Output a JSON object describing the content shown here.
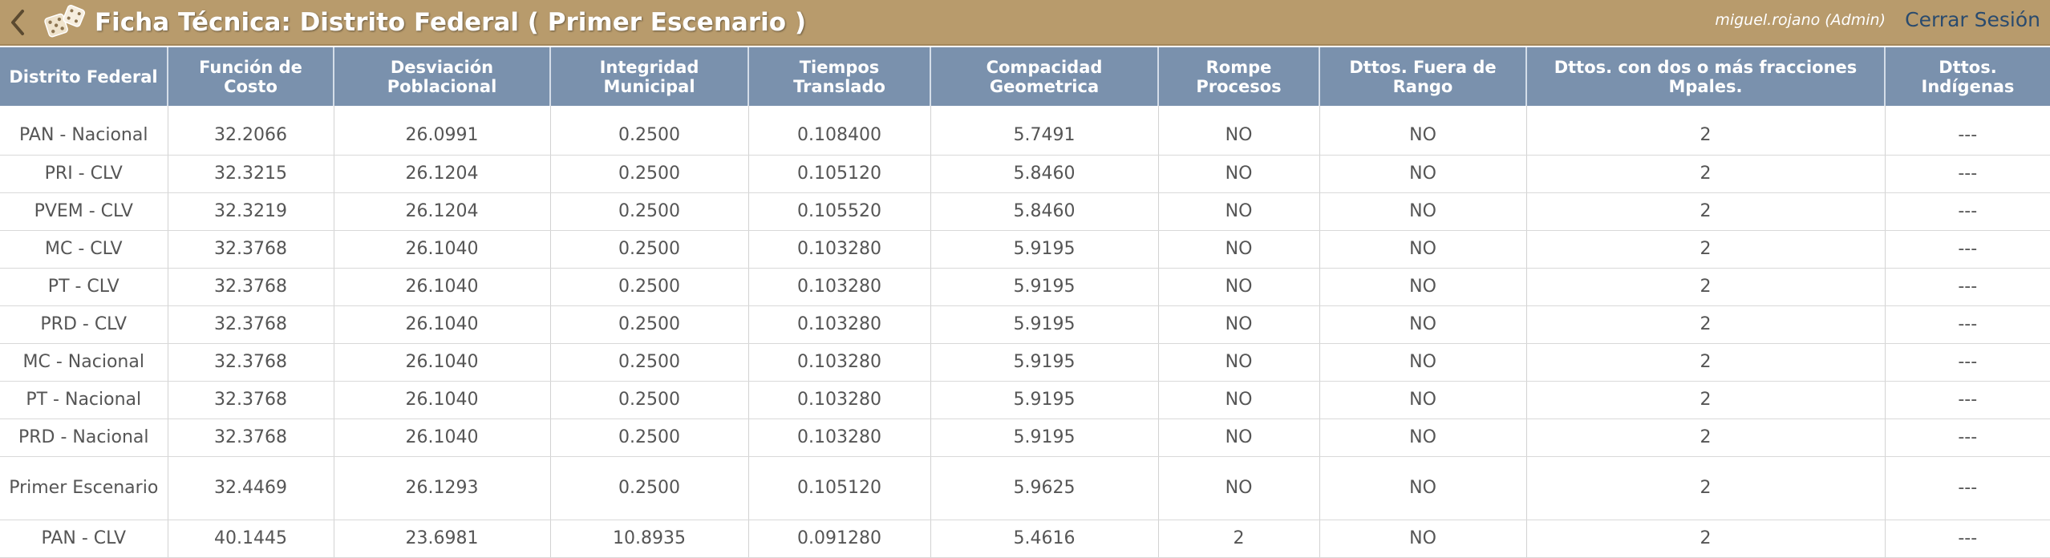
{
  "header": {
    "title": "Ficha Técnica: Distrito Federal ( Primer Escenario )",
    "user": "miguel.rojano (Admin)",
    "logout_label": "Cerrar Sesión"
  },
  "table": {
    "columns": [
      "Distrito Federal",
      "Función de Costo",
      "Desviación Poblacional",
      "Integridad Municipal",
      "Tiempos Translado",
      "Compacidad Geometrica",
      "Rompe Procesos",
      "Dttos. Fuera de Rango",
      "Dttos. con dos o más fracciones Mpales.",
      "Dttos. Indígenas"
    ],
    "rows": [
      [
        "PAN - Nacional",
        "32.2066",
        "26.0991",
        "0.2500",
        "0.108400",
        "5.7491",
        "NO",
        "NO",
        "2",
        "---"
      ],
      [
        "PRI - CLV",
        "32.3215",
        "26.1204",
        "0.2500",
        "0.105120",
        "5.8460",
        "NO",
        "NO",
        "2",
        "---"
      ],
      [
        "PVEM - CLV",
        "32.3219",
        "26.1204",
        "0.2500",
        "0.105520",
        "5.8460",
        "NO",
        "NO",
        "2",
        "---"
      ],
      [
        "MC - CLV",
        "32.3768",
        "26.1040",
        "0.2500",
        "0.103280",
        "5.9195",
        "NO",
        "NO",
        "2",
        "---"
      ],
      [
        "PT - CLV",
        "32.3768",
        "26.1040",
        "0.2500",
        "0.103280",
        "5.9195",
        "NO",
        "NO",
        "2",
        "---"
      ],
      [
        "PRD - CLV",
        "32.3768",
        "26.1040",
        "0.2500",
        "0.103280",
        "5.9195",
        "NO",
        "NO",
        "2",
        "---"
      ],
      [
        "MC - Nacional",
        "32.3768",
        "26.1040",
        "0.2500",
        "0.103280",
        "5.9195",
        "NO",
        "NO",
        "2",
        "---"
      ],
      [
        "PT - Nacional",
        "32.3768",
        "26.1040",
        "0.2500",
        "0.103280",
        "5.9195",
        "NO",
        "NO",
        "2",
        "---"
      ],
      [
        "PRD - Nacional",
        "32.3768",
        "26.1040",
        "0.2500",
        "0.103280",
        "5.9195",
        "NO",
        "NO",
        "2",
        "---"
      ],
      [
        "Primer Escenario",
        "32.4469",
        "26.1293",
        "0.2500",
        "0.105120",
        "5.9625",
        "NO",
        "NO",
        "2",
        "---"
      ],
      [
        "PAN - CLV",
        "40.1445",
        "23.6981",
        "10.8935",
        "0.091280",
        "5.4616",
        "2",
        "NO",
        "2",
        "---"
      ]
    ]
  },
  "icons": {
    "back": "chevron-left-icon",
    "logo": "dice-logo-icon"
  },
  "colors": {
    "header_bg": "#b89b6c",
    "table_header_bg": "#7a91ad",
    "logout_text": "#2a4b6e"
  }
}
